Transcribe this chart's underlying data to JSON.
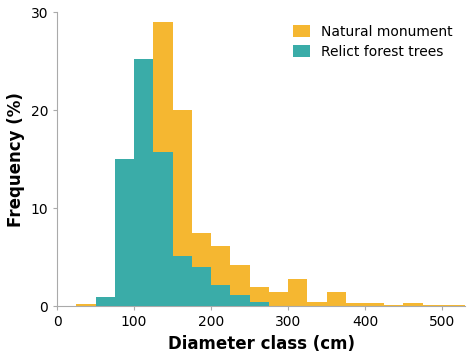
{
  "bin_width": 25,
  "bins_start": 25,
  "natural_monument": [
    0.3,
    0.5,
    4.8,
    17.8,
    29.0,
    20.0,
    7.5,
    6.2,
    4.2,
    2.0,
    1.5,
    2.8,
    0.5,
    1.5,
    0.4,
    0.4,
    0.2,
    0.4,
    0.1,
    0.1,
    0.2
  ],
  "relict_forest": [
    0.0,
    1.0,
    15.0,
    25.2,
    15.8,
    5.2,
    4.0,
    2.2,
    1.2,
    0.5,
    0.0,
    0.0,
    0.0,
    0.0,
    0.0,
    0.0,
    0.0,
    0.0,
    0.0,
    0.0,
    0.0
  ],
  "color_natural": "#F5B731",
  "color_relict": "#3AACA8",
  "ylabel": "Frequency (%)",
  "xlabel": "Diameter class (cm)",
  "ylim": [
    0,
    30
  ],
  "xlim": [
    0,
    530
  ],
  "yticks": [
    0,
    10,
    20,
    30
  ],
  "xticks": [
    0,
    100,
    200,
    300,
    400,
    500
  ],
  "legend_natural": "Natural monument",
  "legend_relict": "Relict forest trees",
  "background_color": "#ffffff",
  "label_fontsize": 12,
  "tick_fontsize": 10,
  "legend_fontsize": 10
}
